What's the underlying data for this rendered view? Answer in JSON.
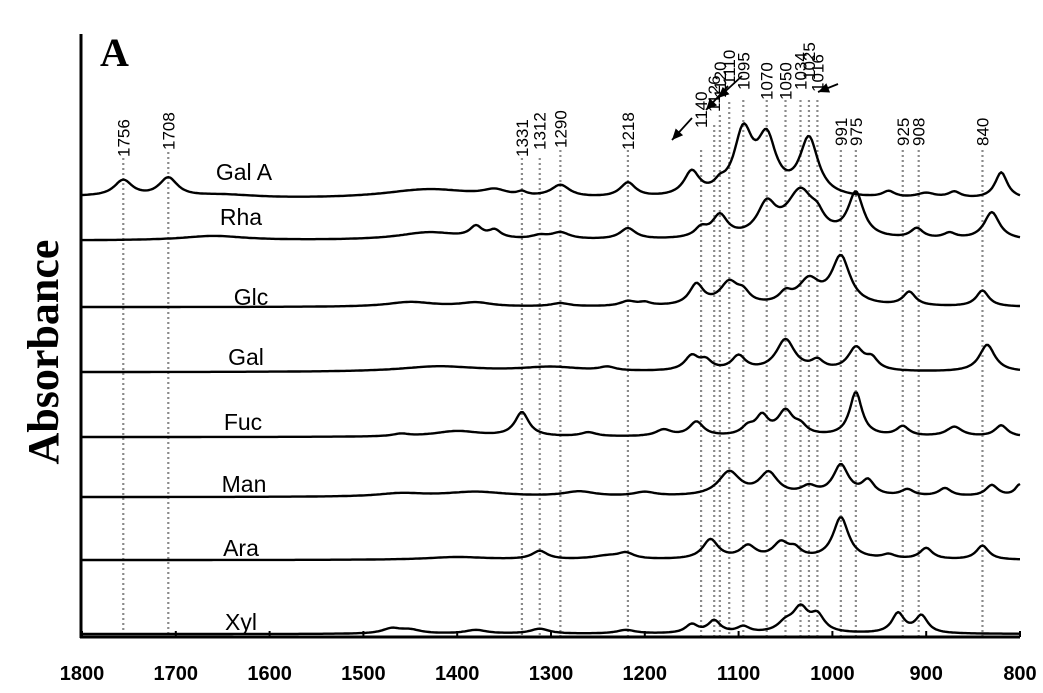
{
  "chart_data": {
    "type": "line",
    "panel_label": "A",
    "ylabel": "Absorbance",
    "xlabel": "",
    "xlim": [
      1800,
      800
    ],
    "x_reversed": true,
    "x_ticks": [
      1800,
      1700,
      1600,
      1500,
      1400,
      1300,
      1200,
      1100,
      1000,
      900,
      800
    ],
    "grid": false,
    "legend": "none",
    "stacked_offset": true,
    "peak_markers": [
      1756,
      1708,
      1331,
      1312,
      1290,
      1218,
      1140,
      1126,
      1120,
      1110,
      1095,
      1070,
      1050,
      1034,
      1025,
      1016,
      991,
      975,
      925,
      908,
      840
    ],
    "arrow_peaks": [
      1140,
      1120,
      1110,
      1025
    ],
    "series": [
      {
        "name": "Gal A",
        "baseline": 0.13,
        "bands": [
          [
            1800,
            0.02,
            40
          ],
          [
            1756,
            0.14,
            12
          ],
          [
            1708,
            0.16,
            12
          ],
          [
            1650,
            0.03,
            45
          ],
          [
            1430,
            0.08,
            60
          ],
          [
            1360,
            0.05,
            15
          ],
          [
            1331,
            0.03,
            6
          ],
          [
            1290,
            0.1,
            12
          ],
          [
            1218,
            0.12,
            10
          ],
          [
            1150,
            0.2,
            10
          ],
          [
            1120,
            0.06,
            7
          ],
          [
            1095,
            0.52,
            12
          ],
          [
            1070,
            0.45,
            12
          ],
          [
            1025,
            0.48,
            12
          ],
          [
            940,
            0.05,
            8
          ],
          [
            900,
            0.04,
            12
          ],
          [
            870,
            0.05,
            8
          ],
          [
            820,
            0.22,
            8
          ]
        ]
      },
      {
        "name": "Rha",
        "baseline": 0.0,
        "bands": [
          [
            1660,
            0.04,
            40
          ],
          [
            1430,
            0.07,
            40
          ],
          [
            1380,
            0.1,
            8
          ],
          [
            1360,
            0.07,
            8
          ],
          [
            1312,
            0.03,
            10
          ],
          [
            1290,
            0.06,
            12
          ],
          [
            1218,
            0.1,
            10
          ],
          [
            1140,
            0.08,
            8
          ],
          [
            1120,
            0.2,
            10
          ],
          [
            1070,
            0.28,
            12
          ],
          [
            1034,
            0.42,
            18
          ],
          [
            1016,
            0.1,
            8
          ],
          [
            975,
            0.4,
            10
          ],
          [
            910,
            0.09,
            8
          ],
          [
            875,
            0.05,
            8
          ],
          [
            830,
            0.25,
            10
          ]
        ]
      },
      {
        "name": "Glc",
        "baseline": 0.0,
        "bands": [
          [
            1450,
            0.06,
            30
          ],
          [
            1380,
            0.05,
            20
          ],
          [
            1290,
            0.04,
            12
          ],
          [
            1218,
            0.06,
            10
          ],
          [
            1200,
            0.04,
            8
          ],
          [
            1145,
            0.26,
            9
          ],
          [
            1110,
            0.28,
            12
          ],
          [
            1095,
            0.12,
            8
          ],
          [
            1050,
            0.12,
            8
          ],
          [
            1025,
            0.3,
            14
          ],
          [
            991,
            0.6,
            12
          ],
          [
            918,
            0.17,
            8
          ],
          [
            840,
            0.2,
            8
          ]
        ]
      },
      {
        "name": "Gal",
        "baseline": 0.0,
        "bands": [
          [
            1420,
            0.06,
            50
          ],
          [
            1300,
            0.05,
            40
          ],
          [
            1240,
            0.04,
            10
          ],
          [
            1150,
            0.16,
            9
          ],
          [
            1135,
            0.1,
            8
          ],
          [
            1100,
            0.16,
            9
          ],
          [
            1050,
            0.35,
            12
          ],
          [
            1016,
            0.1,
            8
          ],
          [
            975,
            0.25,
            10
          ],
          [
            958,
            0.12,
            8
          ],
          [
            835,
            0.3,
            10
          ]
        ]
      },
      {
        "name": "Fuc",
        "baseline": 0.0,
        "bands": [
          [
            1460,
            0.03,
            10
          ],
          [
            1400,
            0.07,
            30
          ],
          [
            1331,
            0.3,
            9
          ],
          [
            1260,
            0.05,
            10
          ],
          [
            1180,
            0.08,
            10
          ],
          [
            1145,
            0.18,
            9
          ],
          [
            1090,
            0.1,
            8
          ],
          [
            1075,
            0.23,
            8
          ],
          [
            1050,
            0.3,
            10
          ],
          [
            1034,
            0.1,
            8
          ],
          [
            975,
            0.55,
            8
          ],
          [
            925,
            0.12,
            8
          ],
          [
            870,
            0.12,
            10
          ],
          [
            820,
            0.14,
            8
          ]
        ]
      },
      {
        "name": "Man",
        "baseline": 0.0,
        "bands": [
          [
            1460,
            0.04,
            30
          ],
          [
            1380,
            0.06,
            40
          ],
          [
            1270,
            0.06,
            20
          ],
          [
            1200,
            0.05,
            14
          ],
          [
            1110,
            0.3,
            14
          ],
          [
            1068,
            0.28,
            12
          ],
          [
            1025,
            0.1,
            10
          ],
          [
            991,
            0.38,
            10
          ],
          [
            962,
            0.18,
            8
          ],
          [
            920,
            0.08,
            8
          ],
          [
            880,
            0.1,
            8
          ],
          [
            830,
            0.14,
            8
          ],
          [
            800,
            0.15,
            6
          ]
        ]
      },
      {
        "name": "Ara",
        "baseline": 0.0,
        "bands": [
          [
            1400,
            0.04,
            40
          ],
          [
            1312,
            0.12,
            10
          ],
          [
            1240,
            0.05,
            20
          ],
          [
            1220,
            0.08,
            10
          ],
          [
            1130,
            0.28,
            10
          ],
          [
            1090,
            0.18,
            10
          ],
          [
            1055,
            0.22,
            10
          ],
          [
            1040,
            0.12,
            8
          ],
          [
            991,
            0.6,
            10
          ],
          [
            940,
            0.06,
            8
          ],
          [
            900,
            0.16,
            8
          ],
          [
            840,
            0.2,
            8
          ]
        ]
      },
      {
        "name": "Xyl",
        "baseline": 0.0,
        "bands": [
          [
            1470,
            0.08,
            12
          ],
          [
            1450,
            0.06,
            14
          ],
          [
            1380,
            0.06,
            14
          ],
          [
            1312,
            0.08,
            12
          ],
          [
            1220,
            0.06,
            12
          ],
          [
            1150,
            0.14,
            8
          ],
          [
            1126,
            0.2,
            8
          ],
          [
            1095,
            0.1,
            8
          ],
          [
            1050,
            0.14,
            10
          ],
          [
            1034,
            0.38,
            10
          ],
          [
            1016,
            0.26,
            9
          ],
          [
            930,
            0.32,
            8
          ],
          [
            905,
            0.28,
            8
          ]
        ]
      }
    ]
  }
}
